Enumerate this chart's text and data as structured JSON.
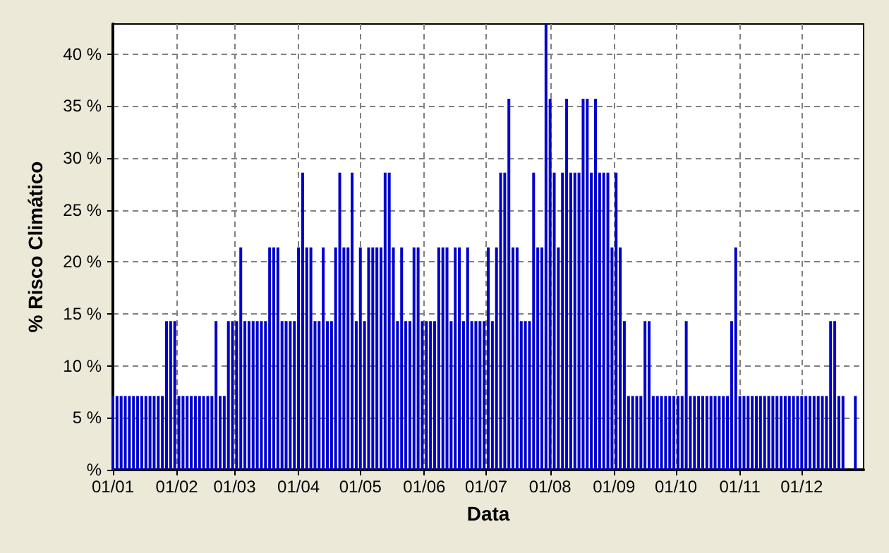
{
  "chart_data": {
    "type": "bar",
    "xlabel": "Data",
    "ylabel": "% Risco Climático",
    "x": [
      "--01-01",
      "--01-03",
      "--01-05",
      "--01-07",
      "--01-09",
      "--01-11",
      "--01-13",
      "--01-15",
      "--01-17",
      "--01-19",
      "--01-21",
      "--01-23",
      "--01-25",
      "--01-27",
      "--01-29",
      "--01-31",
      "--02-02",
      "--02-04",
      "--02-06",
      "--02-08",
      "--02-10",
      "--02-12",
      "--02-14",
      "--02-16",
      "--02-18",
      "--02-20",
      "--02-22",
      "--02-24",
      "--02-26",
      "--02-28",
      "--03-02",
      "--03-04",
      "--03-06",
      "--03-08",
      "--03-10",
      "--03-12",
      "--03-14",
      "--03-16",
      "--03-18",
      "--03-20",
      "--03-22",
      "--03-24",
      "--03-26",
      "--03-28",
      "--03-30",
      "--04-01",
      "--04-03",
      "--04-05",
      "--04-07",
      "--04-09",
      "--04-11",
      "--04-13",
      "--04-15",
      "--04-17",
      "--04-19",
      "--04-21",
      "--04-23",
      "--04-25",
      "--04-27",
      "--04-29",
      "--05-01",
      "--05-03",
      "--05-05",
      "--05-07",
      "--05-09",
      "--05-11",
      "--05-13",
      "--05-15",
      "--05-17",
      "--05-19",
      "--05-21",
      "--05-23",
      "--05-25",
      "--05-27",
      "--05-29",
      "--05-31",
      "--06-02",
      "--06-04",
      "--06-06",
      "--06-08",
      "--06-10",
      "--06-12",
      "--06-14",
      "--06-16",
      "--06-18",
      "--06-20",
      "--06-22",
      "--06-24",
      "--06-26",
      "--06-28",
      "--06-30",
      "--07-02",
      "--07-04",
      "--07-06",
      "--07-08",
      "--07-10",
      "--07-12",
      "--07-14",
      "--07-16",
      "--07-18",
      "--07-20",
      "--07-22",
      "--07-24",
      "--07-26",
      "--07-28",
      "--07-30",
      "--08-01",
      "--08-03",
      "--08-05",
      "--08-07",
      "--08-09",
      "--08-11",
      "--08-13",
      "--08-15",
      "--08-17",
      "--08-19",
      "--08-21",
      "--08-23",
      "--08-25",
      "--08-27",
      "--08-29",
      "--08-31",
      "--09-02",
      "--09-04",
      "--09-06",
      "--09-08",
      "--09-10",
      "--09-12",
      "--09-14",
      "--09-16",
      "--09-18",
      "--09-20",
      "--09-22",
      "--09-24",
      "--09-26",
      "--09-28",
      "--09-30",
      "--10-02",
      "--10-04",
      "--10-06",
      "--10-08",
      "--10-10",
      "--10-12",
      "--10-14",
      "--10-16",
      "--10-18",
      "--10-20",
      "--10-22",
      "--10-24",
      "--10-26",
      "--10-28",
      "--10-30",
      "--11-01",
      "--11-03",
      "--11-05",
      "--11-07",
      "--11-09",
      "--11-11",
      "--11-13",
      "--11-15",
      "--11-17",
      "--11-19",
      "--11-21",
      "--11-23",
      "--11-25",
      "--11-27",
      "--11-29",
      "--12-01",
      "--12-03",
      "--12-05",
      "--12-07",
      "--12-09",
      "--12-11",
      "--12-13",
      "--12-15",
      "--12-17",
      "--12-19",
      "--12-21",
      "--12-23",
      "--12-25",
      "--12-27"
    ],
    "values": [
      7.1,
      7.1,
      7.1,
      7.1,
      7.1,
      7.1,
      7.1,
      7.1,
      7.1,
      7.1,
      7.1,
      7.1,
      7.1,
      14.3,
      14.3,
      14.3,
      7.1,
      7.1,
      7.1,
      7.1,
      7.1,
      7.1,
      7.1,
      7.1,
      7.1,
      14.3,
      7.1,
      7.1,
      14.3,
      14.3,
      14.3,
      21.4,
      14.3,
      14.3,
      14.3,
      14.3,
      14.3,
      14.3,
      21.4,
      21.4,
      21.4,
      14.3,
      14.3,
      14.3,
      14.3,
      21.4,
      28.6,
      21.4,
      21.4,
      14.3,
      14.3,
      21.4,
      14.3,
      14.3,
      21.4,
      28.6,
      21.4,
      21.4,
      28.6,
      14.3,
      21.4,
      14.3,
      21.4,
      21.4,
      21.4,
      21.4,
      28.6,
      28.6,
      21.4,
      14.3,
      21.4,
      14.3,
      14.3,
      21.4,
      21.4,
      14.3,
      14.3,
      14.3,
      14.3,
      21.4,
      21.4,
      21.4,
      14.3,
      21.4,
      21.4,
      14.3,
      21.4,
      14.3,
      14.3,
      14.3,
      14.3,
      21.4,
      14.3,
      21.4,
      28.6,
      28.6,
      35.7,
      21.4,
      21.4,
      14.3,
      14.3,
      14.3,
      28.6,
      21.4,
      21.4,
      42.9,
      35.7,
      28.6,
      21.4,
      28.6,
      35.7,
      28.6,
      28.6,
      28.6,
      35.7,
      35.7,
      28.6,
      35.7,
      28.6,
      28.6,
      28.6,
      21.4,
      28.6,
      21.4,
      14.3,
      7.1,
      7.1,
      7.1,
      7.1,
      14.3,
      14.3,
      7.1,
      7.1,
      7.1,
      7.1,
      7.1,
      7.1,
      7.1,
      7.1,
      14.3,
      7.1,
      7.1,
      7.1,
      7.1,
      7.1,
      7.1,
      7.1,
      7.1,
      7.1,
      7.1,
      14.3,
      21.4,
      7.1,
      7.1,
      7.1,
      7.1,
      7.1,
      7.1,
      7.1,
      7.1,
      7.1,
      7.1,
      7.1,
      7.1,
      7.1,
      7.1,
      7.1,
      7.1,
      7.1,
      7.1,
      7.1,
      7.1,
      7.1,
      7.1,
      14.3,
      14.3,
      7.1,
      7.1,
      null,
      null,
      7.1
    ],
    "color": "#0000cc",
    "xlim": [
      "--01-01",
      "--12-31"
    ],
    "xticks": [
      {
        "value": "--01-01",
        "label": "01/01"
      },
      {
        "value": "--02-01",
        "label": "01/02"
      },
      {
        "value": "--03-01",
        "label": "01/03"
      },
      {
        "value": "--04-01",
        "label": "01/04"
      },
      {
        "value": "--05-01",
        "label": "01/05"
      },
      {
        "value": "--06-01",
        "label": "01/06"
      },
      {
        "value": "--07-01",
        "label": "01/07"
      },
      {
        "value": "--08-01",
        "label": "01/08"
      },
      {
        "value": "--09-01",
        "label": "01/09"
      },
      {
        "value": "--10-01",
        "label": "01/10"
      },
      {
        "value": "--11-01",
        "label": "01/11"
      },
      {
        "value": "--12-01",
        "label": "01/12"
      }
    ],
    "ylim": [
      0,
      42.9
    ],
    "yticks": [
      {
        "value": 0,
        "label": "%"
      },
      {
        "value": 5,
        "label": "5 %"
      },
      {
        "value": 10,
        "label": "10 %"
      },
      {
        "value": 15,
        "label": "15 %"
      },
      {
        "value": 20,
        "label": "20 %"
      },
      {
        "value": 25,
        "label": "25 %"
      },
      {
        "value": 30,
        "label": "30 %"
      },
      {
        "value": 35,
        "label": "35 %"
      },
      {
        "value": 40,
        "label": "40 %"
      }
    ],
    "grid": true
  }
}
